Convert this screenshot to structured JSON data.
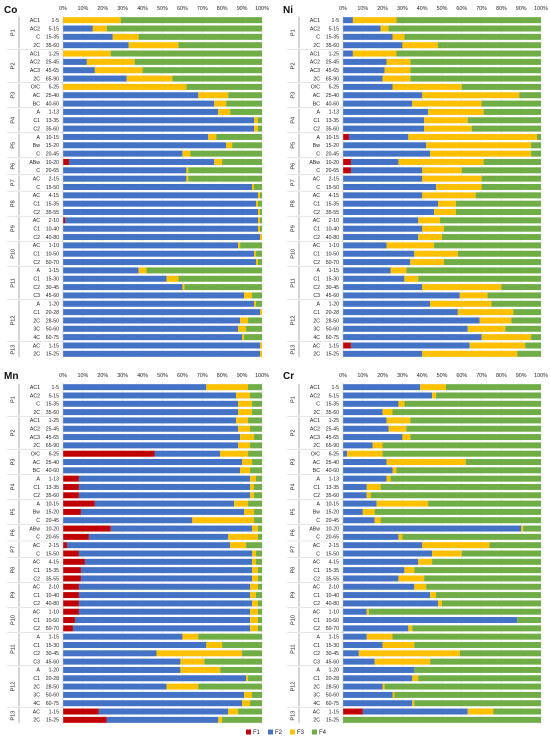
{
  "colors": {
    "F1": "#c00000",
    "F2": "#4472c4",
    "F3": "#ffc000",
    "F4": "#70ad47"
  },
  "legend": [
    "F1",
    "F2",
    "F3",
    "F4"
  ],
  "rows": [
    {
      "profile": "P1",
      "horizon": "AC1",
      "depth": "1-5"
    },
    {
      "profile": "P1",
      "horizon": "AC2",
      "depth": "5-15"
    },
    {
      "profile": "P1",
      "horizon": "C",
      "depth": "15-35"
    },
    {
      "profile": "P1",
      "horizon": "2C",
      "depth": "35-60"
    },
    {
      "profile": "P2",
      "horizon": "AC1",
      "depth": "1-25"
    },
    {
      "profile": "P2",
      "horizon": "AC2",
      "depth": "25-45"
    },
    {
      "profile": "P2",
      "horizon": "AC3",
      "depth": "45-65"
    },
    {
      "profile": "P2",
      "horizon": "2C",
      "depth": "65-90"
    },
    {
      "profile": "P3",
      "horizon": "O/C",
      "depth": "6-25"
    },
    {
      "profile": "P3",
      "horizon": "AC",
      "depth": "25-40"
    },
    {
      "profile": "P3",
      "horizon": "BC",
      "depth": "40-60"
    },
    {
      "profile": "P4",
      "horizon": "A",
      "depth": "1-13"
    },
    {
      "profile": "P4",
      "horizon": "C1",
      "depth": "13-35"
    },
    {
      "profile": "P4",
      "horizon": "C2",
      "depth": "35-60"
    },
    {
      "profile": "P5",
      "horizon": "A",
      "depth": "10-15"
    },
    {
      "profile": "P5",
      "horizon": "Bw",
      "depth": "15-20"
    },
    {
      "profile": "P5",
      "horizon": "C",
      "depth": "20-45"
    },
    {
      "profile": "P6",
      "horizon": "ABw",
      "depth": "10-20"
    },
    {
      "profile": "P6",
      "horizon": "C",
      "depth": "20-65"
    },
    {
      "profile": "P7",
      "horizon": "AC",
      "depth": "2-15"
    },
    {
      "profile": "P7",
      "horizon": "C",
      "depth": "15-50"
    },
    {
      "profile": "P8",
      "horizon": "AC",
      "depth": "4-15"
    },
    {
      "profile": "P8",
      "horizon": "C1",
      "depth": "15-35"
    },
    {
      "profile": "P8",
      "horizon": "C2",
      "depth": "35-55"
    },
    {
      "profile": "P9",
      "horizon": "AC",
      "depth": "2-10"
    },
    {
      "profile": "P9",
      "horizon": "C1",
      "depth": "10-40"
    },
    {
      "profile": "P9",
      "horizon": "C2",
      "depth": "40-80"
    },
    {
      "profile": "P10",
      "horizon": "AC",
      "depth": "1-10"
    },
    {
      "profile": "P10",
      "horizon": "C1",
      "depth": "10-50"
    },
    {
      "profile": "P10",
      "horizon": "C2",
      "depth": "50-70"
    },
    {
      "profile": "P11",
      "horizon": "A",
      "depth": "1-15"
    },
    {
      "profile": "P11",
      "horizon": "C1",
      "depth": "15-30"
    },
    {
      "profile": "P11",
      "horizon": "C2",
      "depth": "30-45"
    },
    {
      "profile": "P11",
      "horizon": "C3",
      "depth": "45-60"
    },
    {
      "profile": "P12",
      "horizon": "A",
      "depth": "1-20"
    },
    {
      "profile": "P12",
      "horizon": "C1",
      "depth": "20-28"
    },
    {
      "profile": "P12",
      "horizon": "2C",
      "depth": "28-50"
    },
    {
      "profile": "P12",
      "horizon": "3C",
      "depth": "50-60"
    },
    {
      "profile": "P12",
      "horizon": "4C",
      "depth": "60-75"
    },
    {
      "profile": "P13",
      "horizon": "AC",
      "depth": "1-15"
    },
    {
      "profile": "P13",
      "horizon": "2C",
      "depth": "15-25"
    }
  ],
  "chart_data": [
    {
      "type": "bar",
      "orientation": "horizontal",
      "stacked": true,
      "title": "Co",
      "xlim": [
        0,
        100
      ],
      "xticks": [
        "0%",
        "10%",
        "20%",
        "30%",
        "40%",
        "50%",
        "60%",
        "70%",
        "80%",
        "90%",
        "100%"
      ],
      "series": [
        {
          "name": "F1",
          "values": [
            0,
            0,
            0,
            0,
            0,
            0,
            0,
            0,
            0,
            0,
            0,
            0,
            0,
            0,
            0,
            0,
            0,
            3,
            0,
            0,
            0,
            0,
            0,
            0,
            1,
            0,
            0,
            0,
            0,
            0,
            0,
            0,
            0,
            0,
            0,
            0,
            0,
            0,
            0,
            0,
            0
          ]
        },
        {
          "name": "F2",
          "values": [
            0,
            15,
            25,
            33,
            0,
            12,
            16,
            32,
            0,
            68,
            76,
            78,
            96,
            96,
            73,
            82,
            60,
            73,
            62,
            62,
            95,
            98,
            97,
            98,
            97,
            98,
            99,
            88,
            96,
            97,
            38,
            52,
            60,
            91,
            96,
            99,
            89,
            88,
            90,
            99,
            99
          ]
        },
        {
          "name": "F3",
          "values": [
            29,
            7,
            13,
            25,
            24,
            24,
            24,
            23,
            62,
            15,
            6,
            6,
            2,
            2,
            4,
            3,
            4,
            4,
            1,
            1,
            1,
            1,
            1,
            1,
            1,
            1,
            1,
            1,
            1,
            1,
            4,
            6,
            1,
            4,
            1,
            1,
            4,
            4,
            1,
            1,
            1
          ]
        },
        {
          "name": "F4",
          "values": [
            71,
            78,
            62,
            42,
            76,
            64,
            60,
            45,
            38,
            17,
            18,
            16,
            2,
            2,
            23,
            15,
            36,
            20,
            37,
            37,
            4,
            1,
            2,
            1,
            1,
            1,
            0,
            11,
            3,
            2,
            58,
            42,
            39,
            5,
            3,
            0,
            7,
            8,
            9,
            0,
            0
          ]
        }
      ]
    },
    {
      "type": "bar",
      "orientation": "horizontal",
      "stacked": true,
      "title": "Ni",
      "xlim": [
        0,
        100
      ],
      "xticks": [
        "0%",
        "10%",
        "20%",
        "30%",
        "40%",
        "50%",
        "60%",
        "70%",
        "80%",
        "90%",
        "100%"
      ],
      "series": [
        {
          "name": "F1",
          "values": [
            0,
            0,
            0,
            0,
            0,
            0,
            0,
            0,
            0,
            0,
            0,
            0,
            0,
            0,
            3,
            0,
            0,
            4,
            4,
            0,
            0,
            0,
            0,
            0,
            0,
            0,
            0,
            0,
            0,
            0,
            0,
            0,
            0,
            0,
            0,
            0,
            0,
            0,
            0,
            4,
            0
          ]
        },
        {
          "name": "F2",
          "values": [
            5,
            19,
            25,
            30,
            5,
            22,
            21,
            20,
            25,
            40,
            35,
            43,
            41,
            41,
            30,
            42,
            44,
            24,
            36,
            40,
            47,
            40,
            48,
            46,
            38,
            40,
            38,
            22,
            36,
            34,
            24,
            31,
            40,
            59,
            44,
            58,
            69,
            63,
            70,
            60,
            40
          ]
        },
        {
          "name": "F3",
          "values": [
            22,
            4,
            6,
            18,
            22,
            12,
            13,
            14,
            35,
            49,
            35,
            28,
            22,
            24,
            65,
            53,
            51,
            43,
            20,
            30,
            23,
            27,
            9,
            11,
            11,
            11,
            12,
            24,
            22,
            17,
            8,
            7,
            40,
            14,
            31,
            28,
            16,
            19,
            25,
            28,
            48
          ]
        },
        {
          "name": "F4",
          "values": [
            73,
            77,
            69,
            52,
            73,
            66,
            66,
            66,
            40,
            11,
            30,
            29,
            37,
            35,
            2,
            5,
            5,
            29,
            40,
            30,
            30,
            33,
            43,
            43,
            51,
            49,
            50,
            54,
            42,
            49,
            68,
            62,
            20,
            27,
            25,
            14,
            15,
            18,
            5,
            8,
            12
          ]
        }
      ]
    },
    {
      "type": "bar",
      "orientation": "horizontal",
      "stacked": true,
      "title": "Mn",
      "xlim": [
        0,
        100
      ],
      "xticks": [
        "0%",
        "10%",
        "20%",
        "30%",
        "40%",
        "50%",
        "60%",
        "70%",
        "80%",
        "90%",
        "100%"
      ],
      "series": [
        {
          "name": "F1",
          "values": [
            0,
            0,
            0,
            0,
            0,
            0,
            0,
            0,
            46,
            0,
            0,
            8,
            8,
            8,
            16,
            9,
            0,
            24,
            13,
            2,
            8,
            11,
            9,
            9,
            8,
            8,
            8,
            8,
            6,
            5,
            0,
            0,
            0,
            0,
            0,
            0,
            0,
            0,
            0,
            18,
            22
          ]
        },
        {
          "name": "F2",
          "values": [
            72,
            87,
            88,
            88,
            87,
            88,
            89,
            88,
            33,
            90,
            89,
            86,
            86,
            86,
            70,
            82,
            65,
            71,
            70,
            82,
            87,
            84,
            86,
            86,
            86,
            86,
            87,
            86,
            88,
            89,
            60,
            72,
            47,
            59,
            59,
            92,
            52,
            91,
            90,
            65,
            56
          ]
        },
        {
          "name": "F3",
          "values": [
            21,
            7,
            7,
            7,
            6,
            6,
            7,
            6,
            14,
            5,
            5,
            3,
            2,
            2,
            7,
            5,
            31,
            3,
            15,
            8,
            2,
            2,
            3,
            3,
            4,
            3,
            3,
            4,
            4,
            4,
            8,
            8,
            43,
            12,
            20,
            1,
            16,
            4,
            4,
            5,
            2
          ]
        },
        {
          "name": "F4",
          "values": [
            7,
            6,
            5,
            5,
            7,
            6,
            4,
            6,
            7,
            5,
            6,
            3,
            4,
            4,
            7,
            4,
            4,
            2,
            2,
            8,
            3,
            3,
            2,
            2,
            2,
            3,
            2,
            2,
            2,
            2,
            32,
            20,
            10,
            29,
            21,
            7,
            32,
            5,
            6,
            12,
            20
          ]
        }
      ]
    },
    {
      "type": "bar",
      "orientation": "horizontal",
      "stacked": true,
      "title": "Cr",
      "xlim": [
        0,
        100
      ],
      "xticks": [
        "0%",
        "10%",
        "20%",
        "30%",
        "40%",
        "50%",
        "60%",
        "70%",
        "80%",
        "90%",
        "100%"
      ],
      "series": [
        {
          "name": "F1",
          "values": [
            0,
            0,
            0,
            0,
            0,
            0,
            0,
            0,
            0,
            0,
            0,
            0,
            0,
            0,
            0,
            0,
            0,
            0,
            0,
            0,
            0,
            0,
            0,
            0,
            0,
            0,
            0,
            0,
            0,
            0,
            0,
            0,
            0,
            0,
            0,
            0,
            0,
            0,
            0,
            10,
            0
          ]
        },
        {
          "name": "F2",
          "values": [
            39,
            45,
            28,
            20,
            22,
            23,
            30,
            15,
            2,
            22,
            25,
            22,
            12,
            12,
            17,
            10,
            16,
            90,
            28,
            40,
            45,
            38,
            31,
            28,
            36,
            44,
            48,
            12,
            88,
            33,
            12,
            20,
            8,
            16,
            36,
            35,
            20,
            25,
            35,
            53,
            0
          ]
        },
        {
          "name": "F3",
          "values": [
            13,
            2,
            3,
            5,
            12,
            9,
            4,
            5,
            18,
            40,
            2,
            2,
            7,
            2,
            26,
            6,
            3,
            1,
            2,
            34,
            15,
            7,
            5,
            13,
            6,
            3,
            2,
            1,
            0,
            2,
            13,
            16,
            51,
            28,
            0,
            3,
            1,
            1,
            1,
            13,
            0
          ]
        },
        {
          "name": "F4",
          "values": [
            48,
            53,
            69,
            75,
            66,
            68,
            66,
            80,
            80,
            38,
            73,
            76,
            81,
            86,
            57,
            84,
            81,
            9,
            70,
            26,
            40,
            55,
            64,
            59,
            58,
            53,
            50,
            87,
            12,
            65,
            75,
            64,
            41,
            56,
            64,
            62,
            79,
            74,
            64,
            24,
            100
          ]
        }
      ]
    }
  ]
}
